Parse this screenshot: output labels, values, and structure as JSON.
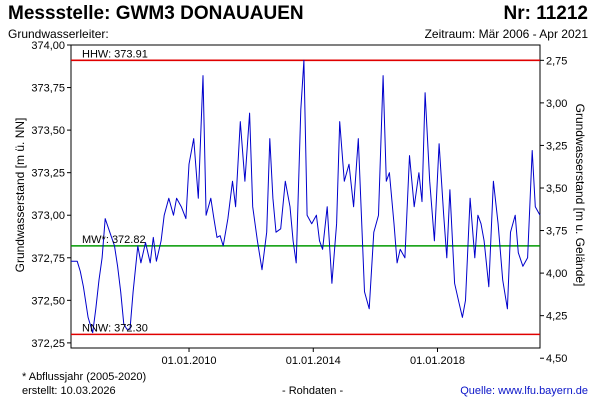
{
  "header": {
    "title_left": "Messstelle: GWM3 DONAUAUEN",
    "title_right": "Nr: 11212",
    "subtitle_left": "Grundwasserleiter:",
    "subtitle_right": "Zeitraum: Mär 2006 - Apr 2021"
  },
  "footer": {
    "note": "* Abflussjahr (2005-2020)",
    "created": "erstellt:  10.03.2026",
    "raw": "- Rohdaten -",
    "source": "Quelle:  www.lfu.bayern.de"
  },
  "colors": {
    "series": "#0000cc",
    "extreme_lines": "#e00000",
    "mean_line": "#009900",
    "axis": "#000000"
  },
  "chart_data": {
    "type": "line",
    "ylabel": "Grundwasserstand [m ü. NN]",
    "ylabel_right": "Grundwasserstand [m u. Gelände]",
    "ylim": [
      372.22,
      374.0
    ],
    "xlim": [
      2006.2,
      2021.3
    ],
    "y_ticks": [
      "374,00",
      "373,75",
      "373,50",
      "373,25",
      "373,00",
      "372,75",
      "372,50",
      "372,25"
    ],
    "y_tick_values": [
      374.0,
      373.75,
      373.5,
      373.25,
      373.0,
      372.75,
      372.5,
      372.25
    ],
    "y_right_ticks": [
      "2,75",
      "3,00",
      "3,25",
      "3,50",
      "3,75",
      "4,00",
      "4,25",
      "4,50"
    ],
    "y_right_tick_values": [
      2.75,
      3.0,
      3.25,
      3.5,
      3.75,
      4.0,
      4.25,
      4.5
    ],
    "x_ticks": [
      "01.01.2010",
      "01.01.2014",
      "01.01.2018"
    ],
    "x_tick_values": [
      2010.0,
      2014.0,
      2018.0
    ],
    "reference_lines": [
      {
        "label": "HHW: 373.91",
        "value": 373.91,
        "kind": "extreme"
      },
      {
        "label": "MW*: 372.82",
        "value": 372.82,
        "kind": "mean"
      },
      {
        "label": "NNW: 372.30",
        "value": 372.3,
        "kind": "extreme"
      }
    ],
    "grid": false,
    "series": [
      {
        "x": [
          2006.2,
          2006.4,
          2006.5,
          2006.6,
          2006.75,
          2006.9,
          2007.0,
          2007.1,
          2007.2,
          2007.3,
          2007.45,
          2007.6,
          2007.7,
          2007.8,
          2007.9,
          2008.0,
          2008.1,
          2008.2,
          2008.35,
          2008.45,
          2008.6,
          2008.75,
          2008.85,
          2008.95,
          2009.1,
          2009.2,
          2009.35,
          2009.5,
          2009.6,
          2009.75,
          2009.9,
          2010.0,
          2010.15,
          2010.3,
          2010.45,
          2010.55,
          2010.7,
          2010.8,
          2010.9,
          2011.0,
          2011.1,
          2011.25,
          2011.4,
          2011.5,
          2011.65,
          2011.8,
          2011.95,
          2012.05,
          2012.2,
          2012.35,
          2012.5,
          2012.6,
          2012.7,
          2012.8,
          2012.95,
          2013.1,
          2013.25,
          2013.35,
          2013.45,
          2013.6,
          2013.7,
          2013.8,
          2013.95,
          2014.1,
          2014.2,
          2014.3,
          2014.45,
          2014.6,
          2014.75,
          2014.85,
          2015.0,
          2015.15,
          2015.3,
          2015.45,
          2015.55,
          2015.65,
          2015.8,
          2015.95,
          2016.1,
          2016.25,
          2016.35,
          2016.45,
          2016.6,
          2016.7,
          2016.8,
          2016.95,
          2017.1,
          2017.25,
          2017.4,
          2017.5,
          2017.6,
          2017.75,
          2017.9,
          2018.05,
          2018.2,
          2018.3,
          2018.4,
          2018.55,
          2018.7,
          2018.8,
          2018.9,
          2019.05,
          2019.2,
          2019.3,
          2019.4,
          2019.5,
          2019.65,
          2019.8,
          2019.95,
          2020.1,
          2020.25,
          2020.35,
          2020.5,
          2020.6,
          2020.75,
          2020.9,
          2021.05,
          2021.15,
          2021.3
        ],
        "values": [
          372.73,
          372.73,
          372.67,
          372.58,
          372.4,
          372.31,
          372.45,
          372.62,
          372.75,
          372.98,
          372.9,
          372.82,
          372.7,
          372.55,
          372.36,
          372.33,
          372.33,
          372.55,
          372.82,
          372.72,
          372.84,
          372.72,
          372.87,
          372.73,
          372.85,
          373.0,
          373.1,
          373.0,
          373.1,
          373.05,
          372.98,
          373.3,
          373.45,
          373.1,
          373.82,
          373.0,
          373.1,
          372.98,
          372.87,
          372.88,
          372.82,
          372.98,
          373.2,
          373.05,
          373.55,
          373.2,
          373.6,
          373.05,
          372.85,
          372.68,
          372.9,
          373.45,
          373.1,
          372.9,
          372.92,
          373.2,
          373.05,
          372.85,
          372.72,
          373.62,
          373.91,
          373.0,
          372.95,
          373.0,
          372.85,
          372.8,
          373.05,
          372.6,
          372.95,
          373.55,
          373.2,
          373.3,
          373.05,
          373.45,
          373.0,
          372.55,
          372.45,
          372.9,
          373.0,
          373.82,
          373.2,
          373.25,
          372.95,
          372.72,
          372.8,
          372.75,
          373.35,
          373.05,
          373.25,
          373.08,
          373.72,
          373.2,
          372.85,
          373.42,
          373.0,
          372.75,
          373.15,
          372.6,
          372.48,
          372.4,
          372.5,
          373.1,
          372.75,
          373.0,
          372.95,
          372.85,
          372.58,
          373.2,
          372.95,
          372.62,
          372.45,
          372.9,
          373.0,
          372.78,
          372.7,
          372.75,
          373.38,
          373.05,
          373.0
        ]
      }
    ]
  }
}
